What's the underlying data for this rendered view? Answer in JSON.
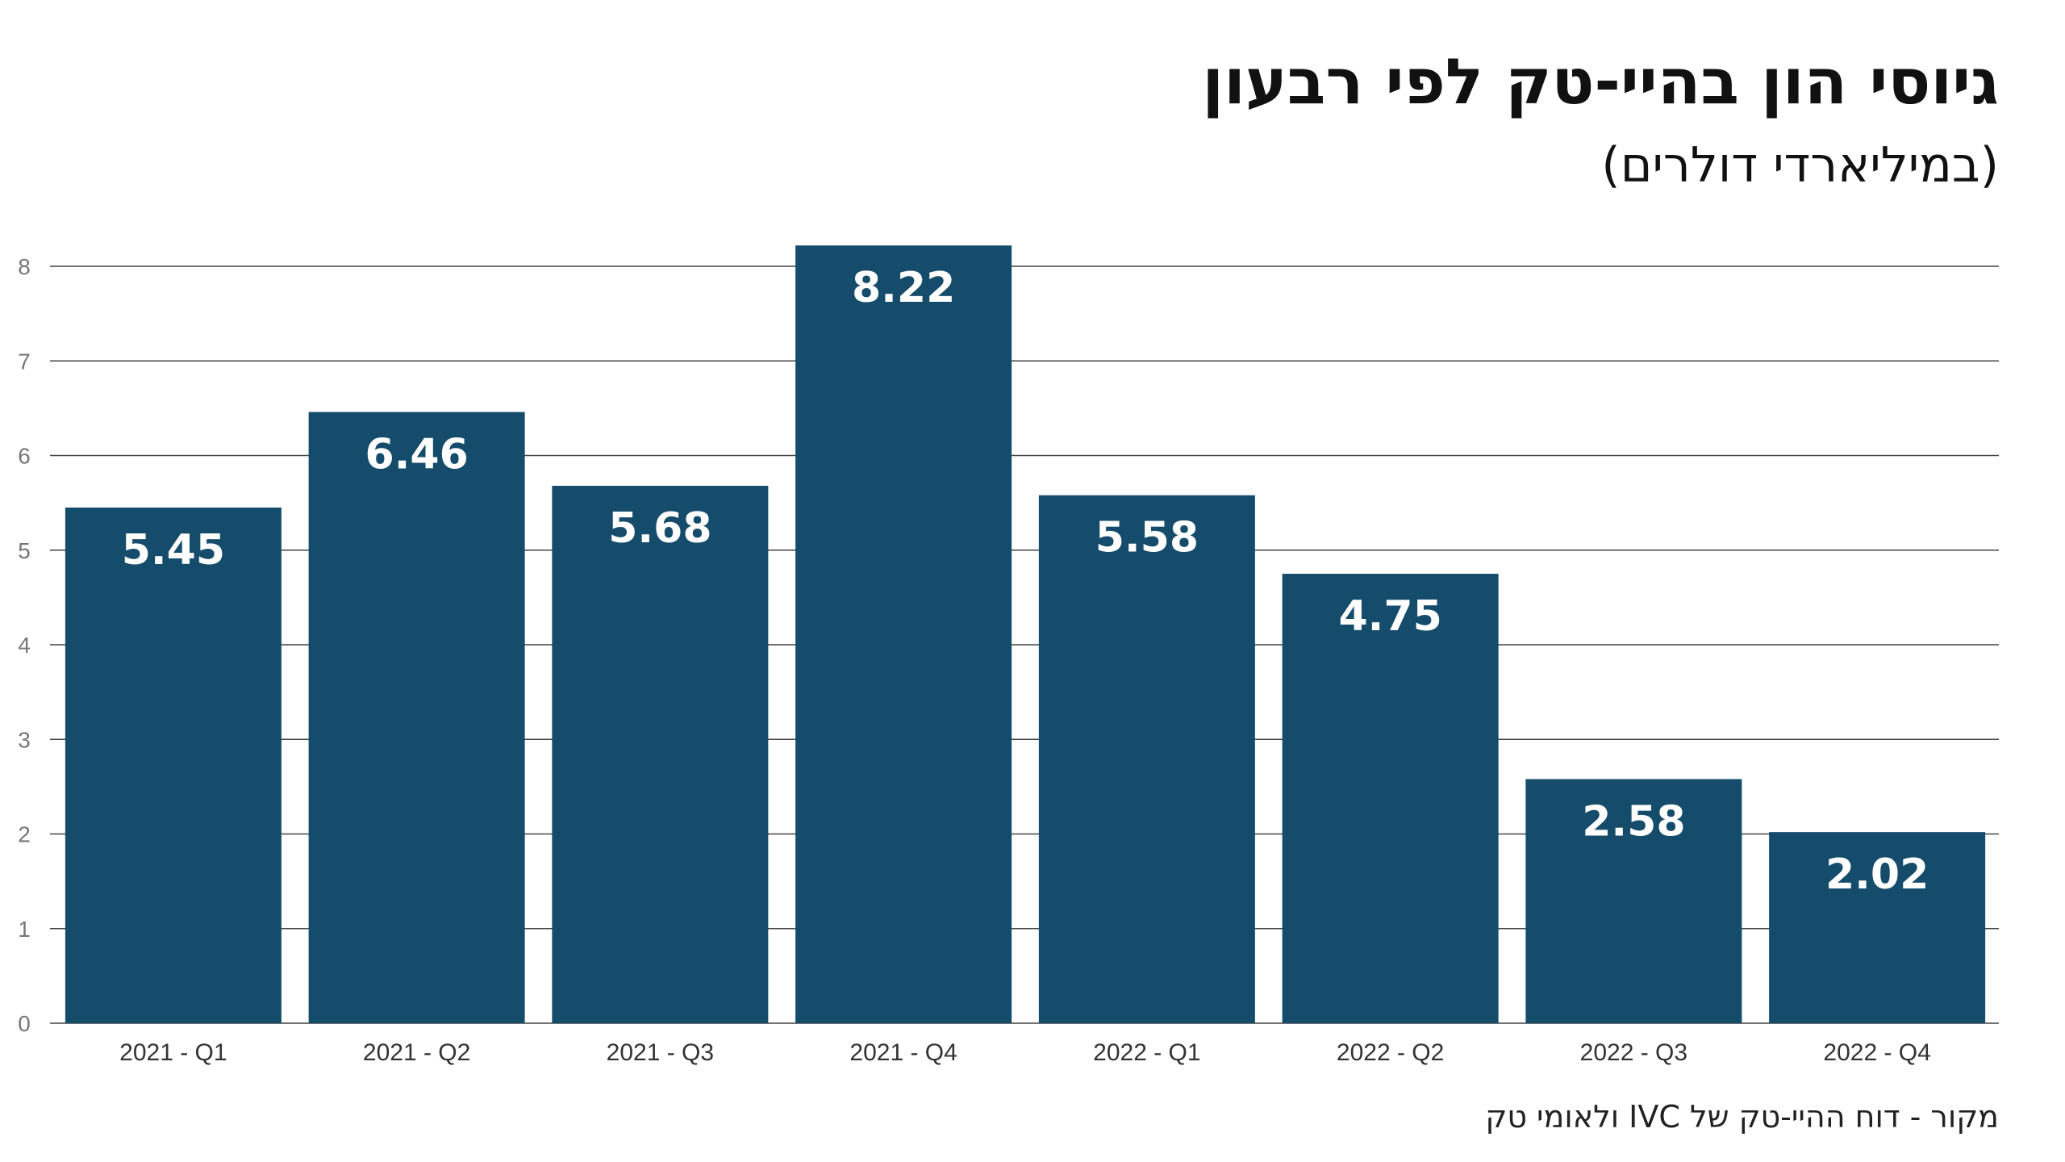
{
  "header": {
    "title": "גיוסי הון בהיי-טק לפי רבעון",
    "subtitle": "(במיליארדי דולרים)"
  },
  "footer": {
    "source": "מקור - דוח ההיי-טק של IVC ולאומי טק"
  },
  "colors": {
    "bar": "#154c6b",
    "bar_label": "#ffffff",
    "grid": "#444444",
    "tick": "#777777",
    "category": "#333333"
  },
  "chart_data": {
    "type": "bar",
    "title": "גיוסי הון בהיי-טק לפי רבעון",
    "subtitle": "(במיליארדי דולרים)",
    "xlabel": "",
    "ylabel": "",
    "categories": [
      "2021 - Q1",
      "2021 - Q2",
      "2021 - Q3",
      "2021 - Q4",
      "2022 - Q1",
      "2022 - Q2",
      "2022 - Q3",
      "2022 - Q4"
    ],
    "values": [
      5.45,
      6.46,
      5.68,
      8.22,
      5.58,
      4.75,
      2.58,
      2.02
    ],
    "value_labels": [
      "5.45",
      "6.46",
      "5.68",
      "8.22",
      "5.58",
      "4.75",
      "2.58",
      "2.02"
    ],
    "ylim": [
      0,
      8
    ],
    "yticks": [
      0,
      1,
      2,
      3,
      4,
      5,
      6,
      7,
      8
    ],
    "ytick_labels": [
      "0",
      "1",
      "2",
      "3",
      "4",
      "5",
      "6",
      "7",
      "8"
    ],
    "grid": true,
    "legend": "none"
  }
}
